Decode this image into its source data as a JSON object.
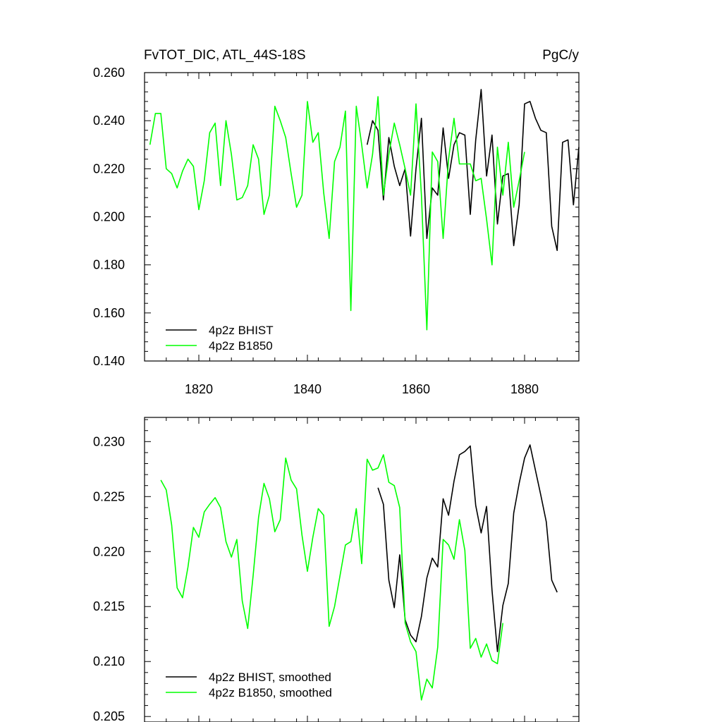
{
  "chart_data": [
    {
      "type": "line",
      "title": "FvTOT_DIC, ATL_44S-18S",
      "units": "PgC/y",
      "xlim": [
        1810,
        1890
      ],
      "ylim": [
        0.14,
        0.26
      ],
      "x_ticks": [
        1820,
        1840,
        1860,
        1880
      ],
      "x_tick_labels": [
        "1820",
        "1840",
        "1860",
        "1880"
      ],
      "y_ticks": [
        0.14,
        0.16,
        0.18,
        0.2,
        0.22,
        0.24,
        0.26
      ],
      "y_tick_labels": [
        "0.140",
        "0.160",
        "0.180",
        "0.200",
        "0.220",
        "0.240",
        "0.260"
      ],
      "legend": "bottom-left",
      "grid": false,
      "series": [
        {
          "name": "4p2z BHIST",
          "color": "#000000",
          "x_start": 1851,
          "values": [
            0.23,
            0.24,
            0.236,
            0.207,
            0.233,
            0.221,
            0.213,
            0.22,
            0.192,
            0.22,
            0.241,
            0.191,
            0.212,
            0.209,
            0.237,
            0.216,
            0.23,
            0.235,
            0.234,
            0.201,
            0.232,
            0.253,
            0.217,
            0.234,
            0.197,
            0.217,
            0.218,
            0.188,
            0.205,
            0.247,
            0.248,
            0.241,
            0.236,
            0.235,
            0.196,
            0.186,
            0.231,
            0.232,
            0.205,
            0.229
          ]
        },
        {
          "name": "4p2z B1850",
          "color": "#00ff00",
          "x_start": 1811,
          "values": [
            0.23,
            0.243,
            0.243,
            0.22,
            0.218,
            0.212,
            0.219,
            0.224,
            0.221,
            0.203,
            0.215,
            0.235,
            0.239,
            0.213,
            0.24,
            0.226,
            0.207,
            0.208,
            0.213,
            0.23,
            0.224,
            0.201,
            0.209,
            0.246,
            0.24,
            0.233,
            0.218,
            0.204,
            0.209,
            0.248,
            0.231,
            0.235,
            0.21,
            0.191,
            0.223,
            0.229,
            0.244,
            0.161,
            0.246,
            0.23,
            0.212,
            0.226,
            0.25,
            0.209,
            0.226,
            0.239,
            0.23,
            0.22,
            0.209,
            0.247,
            0.209,
            0.153,
            0.227,
            0.223,
            0.191,
            0.224,
            0.241,
            0.222,
            0.222,
            0.222,
            0.215,
            0.216,
            0.199,
            0.18,
            0.229,
            0.209,
            0.231,
            0.204,
            0.215,
            0.227
          ]
        }
      ]
    },
    {
      "type": "line",
      "title": "",
      "xlim": [
        1810,
        1890
      ],
      "ylim": [
        0.2045,
        0.2322
      ],
      "x_ticks": [
        1820,
        1840,
        1860,
        1880
      ],
      "y_ticks": [
        0.205,
        0.21,
        0.215,
        0.22,
        0.225,
        0.23
      ],
      "y_tick_labels": [
        "0.205",
        "0.210",
        "0.215",
        "0.220",
        "0.225",
        "0.230"
      ],
      "legend": "bottom-left",
      "grid": false,
      "series": [
        {
          "name": "4p2z BHIST, smoothed",
          "color": "#000000",
          "x_start": 1853,
          "values": [
            0.2258,
            0.2243,
            0.2174,
            0.2149,
            0.2197,
            0.2138,
            0.2124,
            0.2118,
            0.2141,
            0.2176,
            0.2194,
            0.2186,
            0.2248,
            0.2233,
            0.2264,
            0.2288,
            0.2291,
            0.2296,
            0.2242,
            0.2217,
            0.2241,
            0.2165,
            0.2109,
            0.2151,
            0.2171,
            0.2235,
            0.2262,
            0.2285,
            0.2297,
            0.2274,
            0.2251,
            0.2227,
            0.2174,
            0.2163
          ]
        },
        {
          "name": "4p2z B1850, smoothed",
          "color": "#00ff00",
          "x_start": 1813,
          "values": [
            0.2265,
            0.2256,
            0.2224,
            0.2167,
            0.2158,
            0.2186,
            0.2222,
            0.2213,
            0.2236,
            0.2243,
            0.2249,
            0.224,
            0.2209,
            0.2195,
            0.2211,
            0.2155,
            0.213,
            0.2178,
            0.2231,
            0.2262,
            0.2248,
            0.2218,
            0.2229,
            0.2285,
            0.2265,
            0.2257,
            0.2215,
            0.2182,
            0.2213,
            0.2239,
            0.2233,
            0.2132,
            0.215,
            0.2178,
            0.2206,
            0.2209,
            0.2239,
            0.2189,
            0.2284,
            0.2274,
            0.2276,
            0.2288,
            0.2263,
            0.226,
            0.224,
            0.2135,
            0.2118,
            0.2109,
            0.2065,
            0.2084,
            0.2076,
            0.2113,
            0.2211,
            0.2206,
            0.2193,
            0.2229,
            0.2201,
            0.2112,
            0.2121,
            0.2104,
            0.2116,
            0.2101,
            0.2098,
            0.2135
          ]
        }
      ]
    }
  ]
}
